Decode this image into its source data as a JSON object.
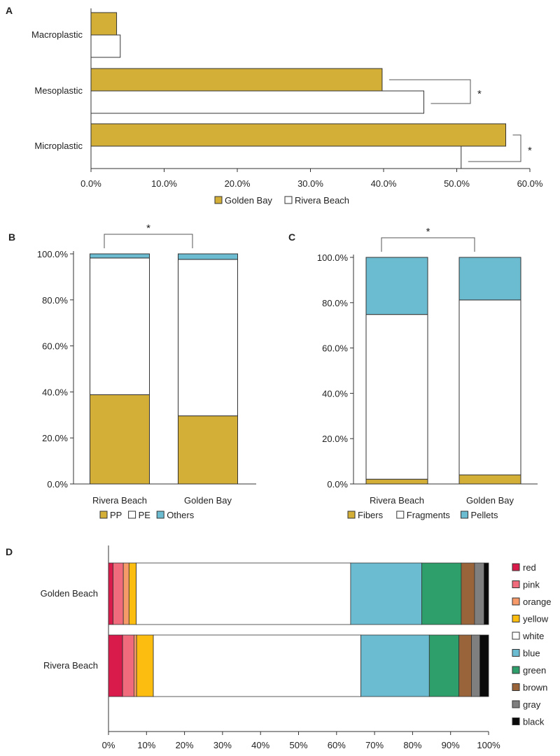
{
  "colors": {
    "gold": "#D4AF37",
    "white": "#FFFFFF",
    "teal": "#6BBCD1",
    "axis": "#333333",
    "bracket": "#555555"
  },
  "chart_data": [
    {
      "panel": "A",
      "type": "bar",
      "orientation": "horizontal",
      "categories": [
        "Macroplastic",
        "Mesoplastic",
        "Microplastic"
      ],
      "series": [
        {
          "name": "Golden Bay",
          "color": "#D4AF37",
          "values": [
            3.5,
            39.8,
            56.7
          ]
        },
        {
          "name": "Rivera Beach",
          "color": "#FFFFFF",
          "values": [
            4.0,
            45.5,
            50.6
          ]
        }
      ],
      "xlim": [
        0,
        60
      ],
      "xticks": [
        "0.0%",
        "10.0%",
        "20.0%",
        "30.0%",
        "40.0%",
        "50.0%",
        "60.0%"
      ],
      "significance": [
        "*",
        "*"
      ],
      "legend_position": "bottom"
    },
    {
      "panel": "B",
      "type": "bar",
      "stacked": true,
      "categories": [
        "Rivera Beach",
        "Golden Bay"
      ],
      "series": [
        {
          "name": "PP",
          "color": "#D4AF37",
          "values": [
            38.8,
            29.6
          ]
        },
        {
          "name": "PE",
          "color": "#FFFFFF",
          "values": [
            59.4,
            68.0
          ]
        },
        {
          "name": "Others",
          "color": "#6BBCD1",
          "values": [
            1.8,
            2.4
          ]
        }
      ],
      "ylim": [
        0,
        100
      ],
      "yticks": [
        "0.0%",
        "20.0%",
        "40.0%",
        "60.0%",
        "80.0%",
        "100.0%"
      ],
      "significance": "*",
      "legend_position": "bottom"
    },
    {
      "panel": "C",
      "type": "bar",
      "stacked": true,
      "categories": [
        "Rivera Beach",
        "Golden Bay"
      ],
      "series": [
        {
          "name": "Fibers",
          "color": "#D4AF37",
          "values": [
            2.1,
            4.0
          ]
        },
        {
          "name": "Fragments",
          "color": "#FFFFFF",
          "values": [
            72.7,
            77.2
          ]
        },
        {
          "name": "Pellets",
          "color": "#6BBCD1",
          "values": [
            25.2,
            18.8
          ]
        }
      ],
      "ylim": [
        0,
        100
      ],
      "yticks": [
        "0.0%",
        "20.0%",
        "40.0%",
        "60.0%",
        "80.0%",
        "100.0%"
      ],
      "significance": "*",
      "legend_position": "bottom"
    },
    {
      "panel": "D",
      "type": "bar",
      "orientation": "horizontal",
      "stacked": true,
      "categories": [
        "Golden Beach",
        "Rivera Beach"
      ],
      "series": [
        {
          "name": "red",
          "color": "#D81B4A",
          "values": [
            1.2,
            3.7
          ]
        },
        {
          "name": "pink",
          "color": "#F06C7C",
          "values": [
            2.7,
            3.0
          ]
        },
        {
          "name": "orange",
          "color": "#F79A6A",
          "values": [
            1.5,
            0.7
          ]
        },
        {
          "name": "yellow",
          "color": "#FDBD10",
          "values": [
            1.9,
            4.4
          ]
        },
        {
          "name": "white",
          "color": "#FFFFFF",
          "values": [
            56.4,
            54.6
          ]
        },
        {
          "name": "blue",
          "color": "#6BBCD1",
          "values": [
            18.7,
            18.0
          ]
        },
        {
          "name": "green",
          "color": "#2E9E6B",
          "values": [
            10.4,
            7.8
          ]
        },
        {
          "name": "brown",
          "color": "#99643A",
          "values": [
            3.5,
            3.3
          ]
        },
        {
          "name": "gray",
          "color": "#7F7F7F",
          "values": [
            2.5,
            2.2
          ]
        },
        {
          "name": "black",
          "color": "#0A0A0A",
          "values": [
            1.2,
            2.3
          ]
        }
      ],
      "xlim": [
        0,
        100
      ],
      "xticks": [
        "0%",
        "10%",
        "20%",
        "30%",
        "40%",
        "50%",
        "60%",
        "70%",
        "80%",
        "90%",
        "100%"
      ],
      "legend_position": "right"
    }
  ]
}
